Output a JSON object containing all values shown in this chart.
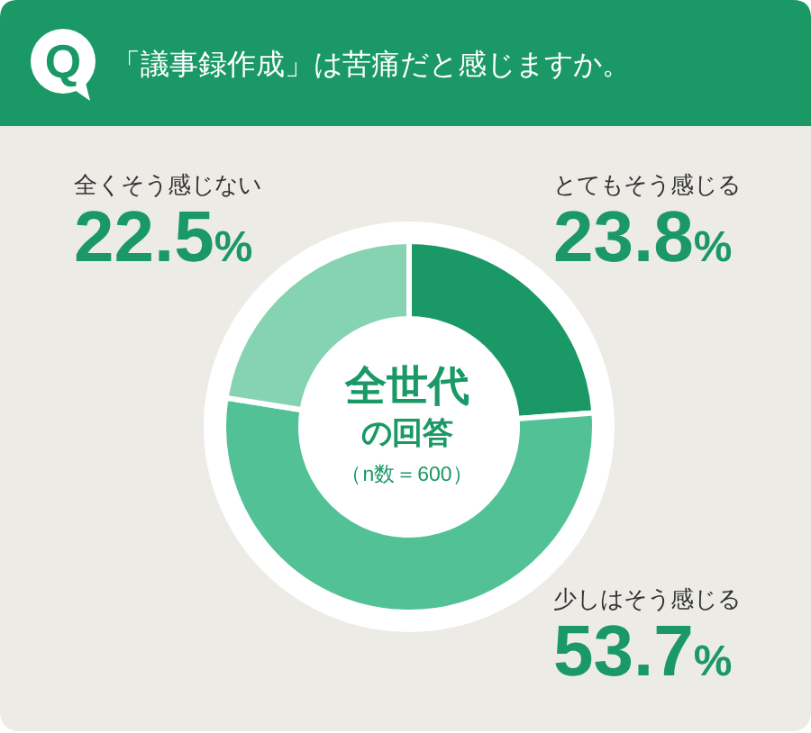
{
  "chart_data": {
    "type": "donut",
    "title": "「議事録作成」は苦痛だと感じますか。",
    "categories": [
      "とてもそう感じる",
      "少しはそう感じる",
      "全くそう感じない"
    ],
    "values": [
      23.8,
      53.7,
      22.5
    ],
    "colors": [
      "#1a9966",
      "#52c296",
      "#86d3b2"
    ],
    "value_labels": [
      "23.8%",
      "53.7%",
      "22.5%"
    ],
    "annotations": [
      "Q",
      "全世代",
      "の回答",
      "（n数＝600）"
    ]
  }
}
